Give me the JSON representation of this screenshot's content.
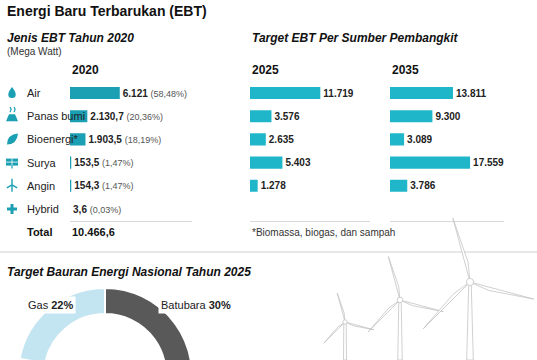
{
  "title": "Energi Baru Terbarukan (EBT)",
  "chart_data": [
    {
      "type": "bar",
      "orientation": "horizontal",
      "title": "Jenis EBT Tahun 2020",
      "subtitle": "(Mega Watt)",
      "xlabel": "2020",
      "categories": [
        "Air",
        "Panas bumi",
        "Bioenergi*",
        "Surya",
        "Angin",
        "Hybrid"
      ],
      "values": [
        6121,
        2130.7,
        1903.5,
        153.5,
        154.3,
        3.6
      ],
      "value_labels": [
        "6.121",
        "2.130,7",
        "1.903,5",
        "153,5",
        "154,3",
        "3,6"
      ],
      "share_labels": [
        "(58,48%)",
        "(20,36%)",
        "(18,19%)",
        "(1,47%)",
        "(1,47%)",
        "(0,03%)"
      ],
      "total_label": "Total",
      "total": 10466.6,
      "total_value_label": "10.466,6",
      "xlim": [
        0,
        15000
      ],
      "color": "#1a9fb3",
      "data_labels": true,
      "tick_labels": false,
      "grid": false
    },
    {
      "type": "bar",
      "orientation": "horizontal",
      "title": "Target EBT Per Sumber Pembangkit",
      "xlabel": "2025",
      "note": "*Biomassa, biogas, dan sampah",
      "categories": [
        "Air",
        "Panas bumi",
        "Bioenergi*",
        "Surya",
        "Angin",
        "Hybrid"
      ],
      "values": [
        11719,
        3576,
        2635,
        5403,
        1278,
        null
      ],
      "value_labels": [
        "11.719",
        "3.576",
        "2.635",
        "5.403",
        "1.278",
        null
      ],
      "xlim": [
        0,
        20000
      ],
      "color": "#20b6c9",
      "data_labels": true,
      "tick_labels": false,
      "grid": false
    },
    {
      "type": "bar",
      "orientation": "horizontal",
      "xlabel": "2035",
      "categories": [
        "Air",
        "Panas bumi",
        "Bioenergi*",
        "Surya",
        "Angin",
        "Hybrid"
      ],
      "values": [
        13811,
        9300,
        3089,
        17559,
        3786,
        null
      ],
      "value_labels": [
        "13.811",
        "9.300",
        "3.089",
        "17.559",
        "3.786",
        null
      ],
      "xlim": [
        0,
        25000
      ],
      "color": "#20b6c9",
      "data_labels": true,
      "tick_labels": false,
      "grid": false
    },
    {
      "type": "pie",
      "title": "Target Bauran Energi Nasional Tahun 2025",
      "categories": [
        "Gas",
        "Batubara"
      ],
      "values": [
        22,
        30
      ],
      "value_labels": [
        "22%",
        "30%"
      ],
      "colors": [
        "#c3e5f1",
        "#595959"
      ],
      "data_labels": true
    }
  ]
}
